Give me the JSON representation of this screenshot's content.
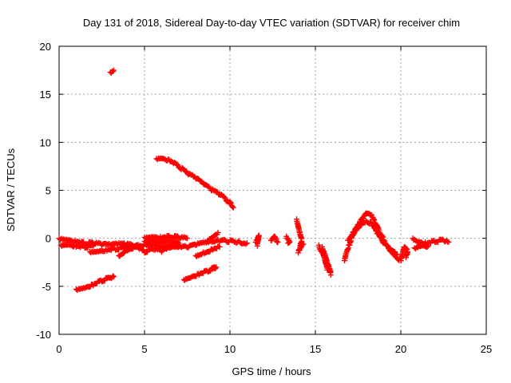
{
  "chart_data": {
    "type": "scatter",
    "title": "Day 131 of 2018, Sidereal Day-to-day VTEC variation (SDTVAR) for receiver chim",
    "xlabel": "GPS time / hours",
    "ylabel": "SDTVAR / TECUs",
    "xlim": [
      0,
      25
    ],
    "ylim": [
      -10,
      20
    ],
    "xticks": [
      "0",
      "5",
      "10",
      "15",
      "20",
      "25"
    ],
    "yticks": [
      "-10",
      "-5",
      "0",
      "5",
      "10",
      "15",
      "20"
    ],
    "grid": true,
    "marker": "plus",
    "color": "#ff0000",
    "series": [
      {
        "name": "s1",
        "points": [
          [
            0.0,
            0.0
          ],
          [
            0.5,
            -0.1
          ],
          [
            1.0,
            -0.3
          ],
          [
            1.5,
            -0.5
          ],
          [
            2.0,
            -0.5
          ],
          [
            2.5,
            -0.6
          ],
          [
            3.0,
            -0.7
          ],
          [
            3.5,
            -0.6
          ],
          [
            4.0,
            -0.6
          ],
          [
            4.5,
            -0.8
          ],
          [
            5.0,
            -0.7
          ],
          [
            5.5,
            -0.6
          ],
          [
            6.0,
            -0.8
          ],
          [
            6.5,
            -0.7
          ],
          [
            7.0,
            -0.8
          ],
          [
            7.5,
            -0.9
          ],
          [
            8.0,
            -0.6
          ],
          [
            8.5,
            -0.5
          ],
          [
            9.0,
            -0.4
          ],
          [
            9.5,
            -0.2
          ],
          [
            10.0,
            -0.3
          ],
          [
            10.5,
            -0.4
          ],
          [
            11.0,
            -0.5
          ]
        ]
      },
      {
        "name": "s2",
        "points": [
          [
            0.1,
            -0.7
          ],
          [
            0.5,
            -0.6
          ],
          [
            1.0,
            -0.8
          ],
          [
            1.5,
            -0.9
          ],
          [
            2.0,
            -0.8
          ]
        ]
      },
      {
        "name": "s3",
        "points": [
          [
            1.0,
            -5.3
          ],
          [
            1.5,
            -5.1
          ],
          [
            2.0,
            -4.8
          ],
          [
            2.5,
            -4.4
          ],
          [
            3.0,
            -4.1
          ],
          [
            3.2,
            -4.0
          ]
        ]
      },
      {
        "name": "s4",
        "points": [
          [
            3.0,
            17.3
          ],
          [
            3.2,
            17.5
          ]
        ]
      },
      {
        "name": "s5",
        "points": [
          [
            5.7,
            8.3
          ],
          [
            6.0,
            8.4
          ],
          [
            6.5,
            8.1
          ],
          [
            7.0,
            7.5
          ],
          [
            7.5,
            6.8
          ],
          [
            8.0,
            6.3
          ],
          [
            8.5,
            5.6
          ],
          [
            9.0,
            5.0
          ],
          [
            9.5,
            4.5
          ],
          [
            10.0,
            3.7
          ],
          [
            10.2,
            3.2
          ]
        ]
      },
      {
        "name": "s6",
        "points": [
          [
            5.0,
            0.1
          ],
          [
            5.5,
            0.2
          ],
          [
            6.0,
            0.1
          ],
          [
            6.5,
            0.2
          ],
          [
            7.0,
            0.1
          ],
          [
            7.5,
            0.0
          ]
        ]
      },
      {
        "name": "s7",
        "points": [
          [
            5.0,
            -0.3
          ],
          [
            5.5,
            -0.2
          ],
          [
            6.0,
            -0.4
          ],
          [
            6.5,
            -0.3
          ],
          [
            7.0,
            -0.5
          ]
        ]
      },
      {
        "name": "s8",
        "points": [
          [
            1.8,
            -1.4
          ],
          [
            2.3,
            -1.3
          ],
          [
            2.8,
            -1.2
          ],
          [
            3.3,
            -1.1
          ],
          [
            3.8,
            -1.0
          ],
          [
            4.3,
            -0.9
          ]
        ]
      },
      {
        "name": "s9",
        "points": [
          [
            3.5,
            -1.8
          ],
          [
            4.0,
            -1.2
          ],
          [
            4.5,
            -0.8
          ],
          [
            5.0,
            -1.4
          ],
          [
            5.5,
            -1.1
          ],
          [
            6.0,
            -1.3
          ],
          [
            6.5,
            -1.0
          ],
          [
            7.0,
            -0.9
          ]
        ]
      },
      {
        "name": "s10",
        "points": [
          [
            7.3,
            -4.3
          ],
          [
            7.7,
            -4.0
          ],
          [
            8.2,
            -3.7
          ],
          [
            8.7,
            -3.4
          ],
          [
            9.2,
            -3.0
          ],
          [
            9.0,
            -3.2
          ]
        ]
      },
      {
        "name": "s11",
        "points": [
          [
            8.0,
            -1.8
          ],
          [
            8.5,
            -1.5
          ],
          [
            9.0,
            -1.1
          ],
          [
            9.4,
            -0.9
          ]
        ]
      },
      {
        "name": "s12",
        "points": [
          [
            8.7,
            -0.2
          ],
          [
            9.0,
            0.2
          ],
          [
            9.3,
            0.6
          ]
        ]
      },
      {
        "name": "s13",
        "points": [
          [
            11.5,
            -0.4
          ],
          [
            11.6,
            0.0
          ],
          [
            11.7,
            0.4
          ],
          [
            11.6,
            -0.8
          ]
        ]
      },
      {
        "name": "s14",
        "points": [
          [
            12.4,
            -0.2
          ],
          [
            12.6,
            0.3
          ],
          [
            12.8,
            -0.4
          ]
        ]
      },
      {
        "name": "s15",
        "points": [
          [
            13.3,
            0.2
          ],
          [
            13.5,
            -0.3
          ],
          [
            13.4,
            -0.5
          ]
        ]
      },
      {
        "name": "s16",
        "points": [
          [
            13.9,
            2.0
          ],
          [
            14.0,
            1.3
          ],
          [
            14.1,
            0.5
          ],
          [
            14.2,
            -0.2
          ],
          [
            14.1,
            -1.0
          ],
          [
            14.0,
            -1.4
          ],
          [
            14.3,
            -0.6
          ]
        ]
      },
      {
        "name": "s17",
        "points": [
          [
            15.2,
            -0.7
          ],
          [
            15.3,
            -1.2
          ],
          [
            15.5,
            -1.7
          ],
          [
            15.7,
            -2.5
          ],
          [
            15.8,
            -3.0
          ],
          [
            15.9,
            -3.7
          ],
          [
            15.6,
            -2.0
          ],
          [
            15.4,
            -1.0
          ],
          [
            15.7,
            -3.3
          ]
        ]
      },
      {
        "name": "s18",
        "points": [
          [
            16.7,
            -2.3
          ],
          [
            16.8,
            -1.5
          ],
          [
            17.0,
            -0.6
          ],
          [
            17.2,
            0.4
          ],
          [
            17.5,
            1.4
          ],
          [
            17.8,
            2.2
          ],
          [
            18.0,
            2.6
          ],
          [
            18.3,
            2.3
          ],
          [
            18.6,
            1.3
          ],
          [
            18.9,
            0.2
          ],
          [
            19.2,
            -0.8
          ],
          [
            19.5,
            -1.5
          ],
          [
            19.8,
            -2.0
          ],
          [
            19.9,
            -2.3
          ]
        ]
      },
      {
        "name": "s19",
        "points": [
          [
            16.9,
            -0.2
          ],
          [
            17.3,
            0.8
          ],
          [
            17.7,
            1.5
          ],
          [
            18.0,
            1.8
          ],
          [
            18.3,
            1.5
          ],
          [
            18.6,
            0.6
          ],
          [
            19.0,
            -0.5
          ],
          [
            19.4,
            -1.2
          ],
          [
            19.8,
            -1.7
          ]
        ]
      },
      {
        "name": "s20",
        "points": [
          [
            20.0,
            -2.3
          ],
          [
            20.1,
            -1.5
          ],
          [
            20.2,
            -0.8
          ],
          [
            20.4,
            -1.3
          ],
          [
            20.3,
            -2.0
          ]
        ]
      },
      {
        "name": "s21",
        "points": [
          [
            20.7,
            0.0
          ],
          [
            21.0,
            -0.3
          ],
          [
            21.5,
            -0.5
          ],
          [
            22.0,
            -0.3
          ],
          [
            22.5,
            -0.2
          ],
          [
            22.8,
            -0.4
          ]
        ]
      },
      {
        "name": "s22",
        "points": [
          [
            20.8,
            -1.0
          ],
          [
            21.2,
            -0.7
          ],
          [
            21.6,
            -0.8
          ]
        ]
      }
    ]
  }
}
